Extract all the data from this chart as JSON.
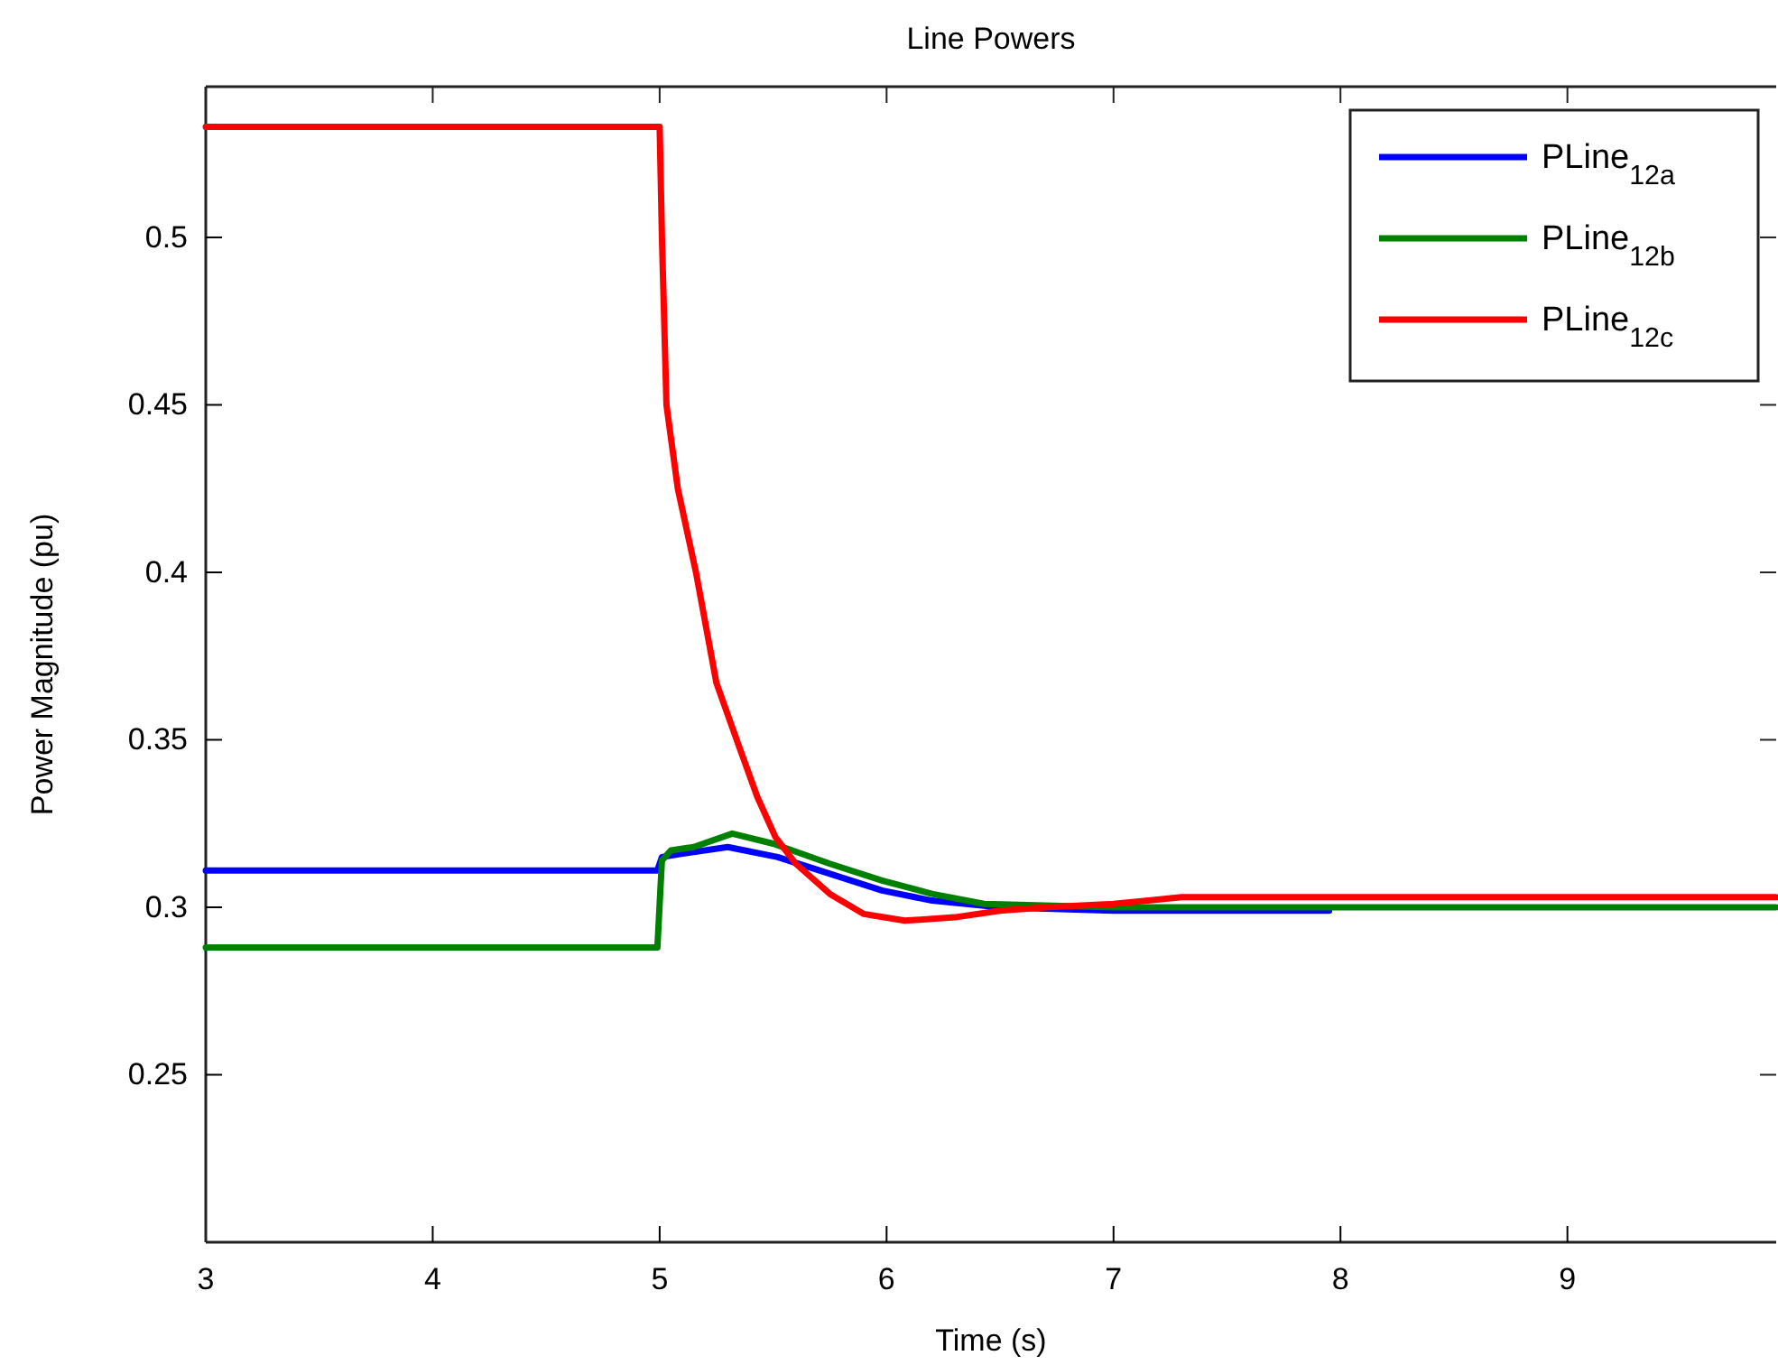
{
  "chart_data": {
    "type": "line",
    "title": "Line Powers",
    "xlabel": "Time (s)",
    "ylabel": "Power Magnitude (pu)",
    "xlim": [
      3,
      9.92
    ],
    "xticks": [
      3,
      4,
      5,
      6,
      7,
      8,
      9
    ],
    "ylim": [
      0.2,
      0.545
    ],
    "yticks": [
      0.25,
      0.3,
      0.35,
      0.4,
      0.45,
      0.5
    ],
    "grid": false,
    "legend": "top right",
    "line_style": "solid",
    "series": [
      {
        "name": "PLine$_{12a}$",
        "color": "#0000ff",
        "x": [
          3,
          4.99,
          5.01,
          5.1,
          5.3,
          5.52,
          5.75,
          5.98,
          6.2,
          6.5,
          7.0,
          7.95
        ],
        "values": [
          0.311,
          0.311,
          0.315,
          0.316,
          0.318,
          0.315,
          0.31,
          0.305,
          0.302,
          0.3,
          0.299,
          0.299
        ]
      },
      {
        "name": "PLine$_{12b}$",
        "color": "#008000",
        "x": [
          3,
          4.99,
          5.01,
          5.05,
          5.15,
          5.32,
          5.5,
          5.75,
          5.98,
          6.2,
          6.43,
          7.0,
          9.92
        ],
        "values": [
          0.288,
          0.288,
          0.314,
          0.317,
          0.318,
          0.322,
          0.319,
          0.313,
          0.308,
          0.304,
          0.301,
          0.3,
          0.3
        ]
      },
      {
        "name": "PLine$_{12c}$",
        "color": "#ff0000",
        "x": [
          3,
          5,
          5.01,
          5.03,
          5.08,
          5.16,
          5.25,
          5.35,
          5.43,
          5.51,
          5.6,
          5.75,
          5.9,
          6.08,
          6.3,
          6.5,
          6.7,
          7.0,
          7.3,
          9.92
        ],
        "values": [
          0.533,
          0.533,
          0.5,
          0.45,
          0.425,
          0.4,
          0.367,
          0.348,
          0.333,
          0.321,
          0.313,
          0.304,
          0.298,
          0.296,
          0.297,
          0.299,
          0.3,
          0.301,
          0.303,
          0.303
        ]
      }
    ]
  }
}
